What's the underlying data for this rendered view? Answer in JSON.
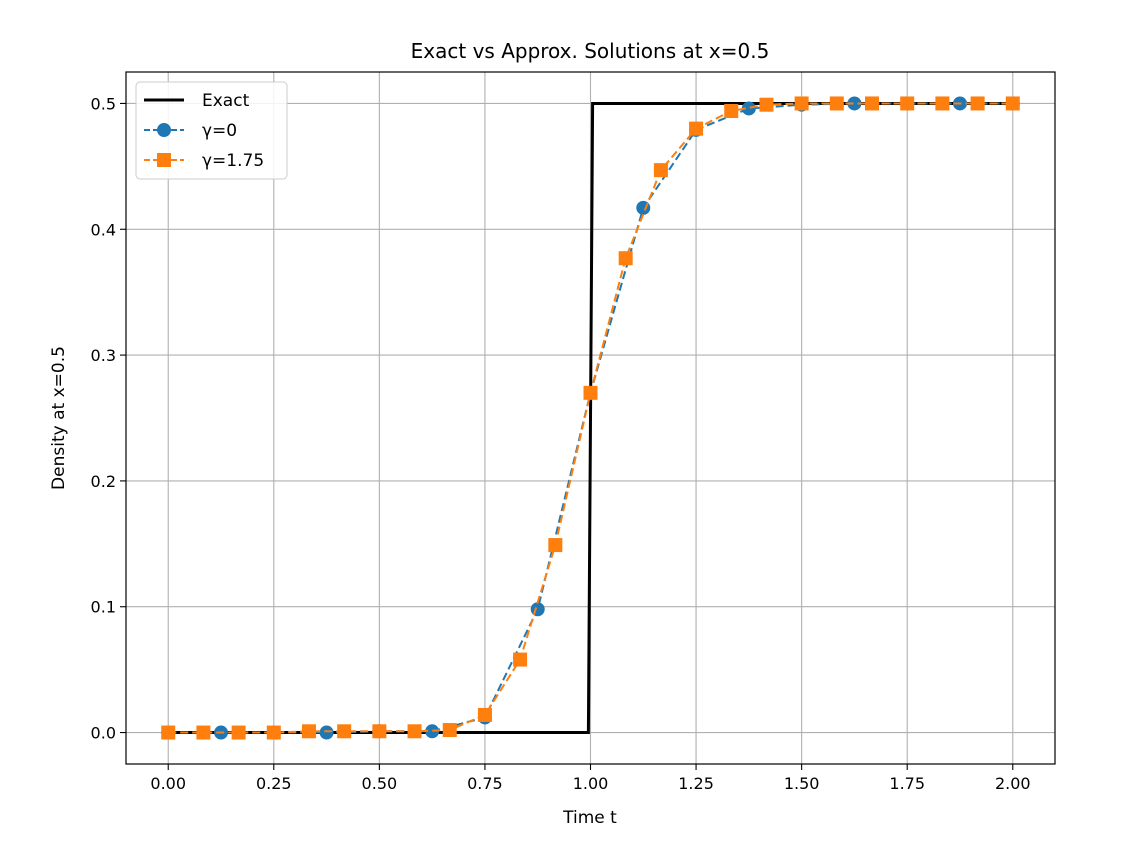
{
  "chart_data": {
    "type": "line",
    "title": "Exact vs Approx. Solutions at x=0.5",
    "xlabel": "Time t",
    "ylabel": "Density at x=0.5",
    "xlim": [
      -0.1,
      2.1
    ],
    "ylim": [
      -0.025,
      0.525
    ],
    "xticks": [
      0.0,
      0.25,
      0.5,
      0.75,
      1.0,
      1.25,
      1.5,
      1.75,
      2.0
    ],
    "xtick_labels": [
      "0.00",
      "0.25",
      "0.50",
      "0.75",
      "1.00",
      "1.25",
      "1.50",
      "1.75",
      "2.00"
    ],
    "yticks": [
      0.0,
      0.1,
      0.2,
      0.3,
      0.4,
      0.5
    ],
    "ytick_labels": [
      "0.0",
      "0.1",
      "0.2",
      "0.3",
      "0.4",
      "0.5"
    ],
    "grid": true,
    "legend_position": "top-left",
    "series": [
      {
        "name": "Exact",
        "color": "#000000",
        "style": "solid",
        "marker": "none",
        "x": [
          0.0,
          0.995,
          1.005,
          2.0
        ],
        "y": [
          0.0,
          0.0,
          0.5,
          0.5
        ]
      },
      {
        "name": "γ=0",
        "color": "#1f77b4",
        "style": "dashed",
        "marker": "circle",
        "x": [
          0.0,
          0.125,
          0.25,
          0.375,
          0.5,
          0.625,
          0.75,
          0.875,
          1.0,
          1.125,
          1.25,
          1.375,
          1.5,
          1.625,
          1.75,
          1.875,
          2.0
        ],
        "y": [
          0.0,
          0.0,
          0.0,
          0.0,
          0.001,
          0.001,
          0.012,
          0.098,
          0.27,
          0.417,
          0.479,
          0.496,
          0.499,
          0.5,
          0.5,
          0.5,
          0.5
        ]
      },
      {
        "name": "γ=1.75",
        "color": "#ff7f0e",
        "style": "dashed",
        "marker": "square",
        "x": [
          0.0,
          0.0833,
          0.1667,
          0.25,
          0.3333,
          0.4167,
          0.5,
          0.5833,
          0.6667,
          0.75,
          0.8333,
          0.9167,
          1.0,
          1.0833,
          1.1667,
          1.25,
          1.3333,
          1.4167,
          1.5,
          1.5833,
          1.6667,
          1.75,
          1.8333,
          1.9167,
          2.0
        ],
        "y": [
          0.0,
          0.0,
          0.0,
          0.0,
          0.001,
          0.001,
          0.001,
          0.001,
          0.002,
          0.014,
          0.058,
          0.149,
          0.27,
          0.377,
          0.447,
          0.48,
          0.494,
          0.499,
          0.5,
          0.5,
          0.5,
          0.5,
          0.5,
          0.5,
          0.5
        ]
      }
    ]
  }
}
